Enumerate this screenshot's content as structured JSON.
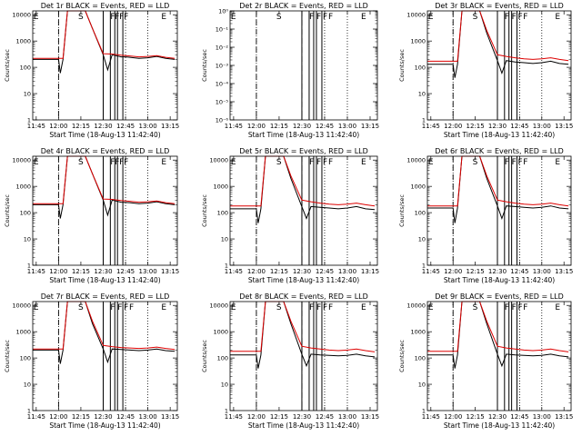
{
  "figure": {
    "colors": {
      "events": "#000000",
      "lld": "#dd0000",
      "axes": "#000000",
      "marker_line": "#000000"
    },
    "axis_font": "sans-serif"
  },
  "chart_data": [
    {
      "type": "line",
      "title": "Det 1r BLACK = Events, RED = LLD",
      "xlabel": "Start Time (18-Aug-13 11:42:40)",
      "ylabel": "Counts/sec",
      "xticks": [
        "11:45",
        "12:00",
        "12:15",
        "12:30",
        "12:45",
        "13:00",
        "13:15"
      ],
      "yticks": [
        "1",
        "10",
        "100",
        "1000",
        "10000"
      ],
      "ylim": [
        1,
        14000
      ],
      "log_y": true,
      "series": [
        {
          "name": "Events",
          "color": "black",
          "x": [
            11.71,
            11.9,
            12.0,
            12.02,
            12.05,
            12.1,
            12.3,
            12.38,
            12.5,
            12.55,
            12.6,
            12.7,
            12.75,
            12.8,
            12.9,
            13.0,
            13.1,
            13.2,
            13.3
          ],
          "y": [
            200,
            200,
            200,
            60,
            200,
            15000,
            15000,
            3000,
            300,
            80,
            300,
            250,
            250,
            240,
            220,
            230,
            260,
            220,
            200
          ]
        },
        {
          "name": "LLD",
          "color": "red",
          "x": [
            11.71,
            11.9,
            12.0,
            12.05,
            12.1,
            12.3,
            12.38,
            12.5,
            12.6,
            12.7,
            12.8,
            12.9,
            13.0,
            13.1,
            13.2,
            13.3
          ],
          "y": [
            220,
            220,
            220,
            220,
            15000,
            15000,
            3000,
            330,
            320,
            290,
            270,
            250,
            260,
            280,
            240,
            220
          ]
        }
      ],
      "markers": {
        "E": [
          11.72,
          13.15
        ],
        "S": [
          12.22
        ],
        "F": [
          12.58,
          12.63,
          12.68,
          12.73
        ]
      },
      "flares": [
        12.5,
        12.58,
        12.63,
        12.66,
        12.72
      ]
    },
    {
      "type": "line",
      "title": "Det 2r BLACK = Events, RED = LLD",
      "xlabel": "Start Time (18-Aug-13 11:42:40)",
      "ylabel": "Counts/sec",
      "xticks": [
        "11:45",
        "12:00",
        "12:15",
        "12:30",
        "12:45",
        "13:00",
        "13:15"
      ],
      "yticks": [
        "10⁻⁶",
        "10⁻⁵",
        "10⁻⁴",
        "10⁻³",
        "10⁻²",
        "10⁻¹",
        "10⁰"
      ],
      "ylim": [
        1e-06,
        1
      ],
      "log_y": true,
      "series": [],
      "markers": {
        "E": [
          11.72,
          13.15
        ],
        "S": [
          12.22
        ],
        "F": [
          12.58,
          12.66,
          12.73,
          12.79
        ]
      },
      "flares": [
        12.5,
        12.58,
        12.63,
        12.66,
        12.72
      ]
    },
    {
      "type": "line",
      "title": "Det 3r BLACK = Events, RED = LLD",
      "xlabel": "Start Time (18-Aug-13 11:42:40)",
      "ylabel": "Counts/sec",
      "xticks": [
        "11:45",
        "12:00",
        "12:15",
        "12:30",
        "12:45",
        "13:00",
        "13:15"
      ],
      "yticks": [
        "1",
        "10",
        "100",
        "1000",
        "10000"
      ],
      "ylim": [
        1,
        14000
      ],
      "log_y": true,
      "series": [
        {
          "name": "Events",
          "color": "black",
          "x": [
            11.71,
            11.9,
            12.0,
            12.02,
            12.05,
            12.1,
            12.3,
            12.38,
            12.5,
            12.55,
            12.6,
            12.7,
            12.8,
            12.9,
            13.0,
            13.1,
            13.2,
            13.3
          ],
          "y": [
            130,
            130,
            130,
            40,
            130,
            15000,
            15000,
            2000,
            180,
            60,
            180,
            160,
            150,
            140,
            150,
            170,
            140,
            130
          ]
        },
        {
          "name": "LLD",
          "color": "red",
          "x": [
            11.71,
            11.9,
            12.0,
            12.05,
            12.1,
            12.3,
            12.38,
            12.5,
            12.6,
            12.7,
            12.8,
            12.9,
            13.0,
            13.1,
            13.2,
            13.3
          ],
          "y": [
            170,
            170,
            170,
            170,
            15000,
            15000,
            2500,
            300,
            260,
            230,
            210,
            200,
            210,
            230,
            200,
            180
          ]
        }
      ],
      "markers": {
        "E": [
          11.72,
          13.15
        ],
        "S": [
          12.22
        ],
        "F": [
          12.58,
          12.66,
          12.73,
          12.79
        ]
      },
      "flares": [
        12.5,
        12.58,
        12.63,
        12.66,
        12.72
      ]
    },
    {
      "type": "line",
      "title": "Det 4r BLACK = Events, RED = LLD",
      "xlabel": "Start Time (18-Aug-13 11:42:40)",
      "ylabel": "Counts/sec",
      "xticks": [
        "11:45",
        "12:00",
        "12:15",
        "12:30",
        "12:45",
        "13:00",
        "13:15"
      ],
      "yticks": [
        "1",
        "10",
        "100",
        "1000",
        "10000"
      ],
      "ylim": [
        1,
        14000
      ],
      "log_y": true,
      "series": [
        {
          "name": "Events",
          "color": "black",
          "x": [
            11.71,
            11.9,
            12.0,
            12.02,
            12.05,
            12.1,
            12.3,
            12.38,
            12.5,
            12.55,
            12.6,
            12.7,
            12.8,
            12.9,
            13.0,
            13.1,
            13.2,
            13.3
          ],
          "y": [
            200,
            200,
            200,
            60,
            200,
            15000,
            15000,
            3000,
            300,
            80,
            300,
            250,
            240,
            220,
            230,
            260,
            220,
            200
          ]
        },
        {
          "name": "LLD",
          "color": "red",
          "x": [
            11.71,
            11.9,
            12.0,
            12.05,
            12.1,
            12.3,
            12.38,
            12.5,
            12.6,
            12.7,
            12.8,
            12.9,
            13.0,
            13.1,
            13.2,
            13.3
          ],
          "y": [
            220,
            220,
            220,
            220,
            15000,
            15000,
            3000,
            330,
            320,
            290,
            270,
            250,
            260,
            280,
            240,
            220
          ]
        }
      ],
      "markers": {
        "E": [
          11.72,
          13.15
        ],
        "S": [
          12.22
        ],
        "F": [
          12.58,
          12.63,
          12.68,
          12.73
        ]
      },
      "flares": [
        12.5,
        12.58,
        12.63,
        12.66,
        12.72
      ]
    },
    {
      "type": "line",
      "title": "Det 5r BLACK = Events, RED = LLD",
      "xlabel": "Start Time (18-Aug-13 11:42:40)",
      "ylabel": "Counts/sec",
      "xticks": [
        "11:45",
        "12:00",
        "12:15",
        "12:30",
        "12:45",
        "13:00",
        "13:15"
      ],
      "yticks": [
        "1",
        "10",
        "100",
        "1000",
        "10000"
      ],
      "ylim": [
        1,
        14000
      ],
      "log_y": true,
      "series": [
        {
          "name": "Events",
          "color": "black",
          "x": [
            11.71,
            11.9,
            12.0,
            12.02,
            12.05,
            12.1,
            12.3,
            12.38,
            12.5,
            12.55,
            12.6,
            12.7,
            12.8,
            12.9,
            13.0,
            13.1,
            13.2,
            13.3
          ],
          "y": [
            140,
            140,
            140,
            40,
            140,
            15000,
            15000,
            2000,
            170,
            60,
            170,
            160,
            150,
            140,
            150,
            170,
            140,
            130
          ]
        },
        {
          "name": "LLD",
          "color": "red",
          "x": [
            11.71,
            11.9,
            12.0,
            12.05,
            12.1,
            12.3,
            12.38,
            12.5,
            12.6,
            12.7,
            12.8,
            12.9,
            13.0,
            13.1,
            13.2,
            13.3
          ],
          "y": [
            180,
            180,
            180,
            180,
            15000,
            15000,
            2500,
            300,
            260,
            230,
            210,
            200,
            210,
            230,
            200,
            180
          ]
        }
      ],
      "markers": {
        "E": [
          11.72,
          13.15
        ],
        "S": [
          12.22
        ],
        "F": [
          12.58,
          12.66,
          12.73,
          12.79
        ]
      },
      "flares": [
        12.5,
        12.58,
        12.63,
        12.66,
        12.72
      ]
    },
    {
      "type": "line",
      "title": "Det 6r BLACK = Events, RED = LLD",
      "xlabel": "Start Time (18-Aug-13 11:42:40)",
      "ylabel": "Counts/sec",
      "xticks": [
        "11:45",
        "12:00",
        "12:15",
        "12:30",
        "12:45",
        "13:00",
        "13:15"
      ],
      "yticks": [
        "1",
        "10",
        "100",
        "1000",
        "10000"
      ],
      "ylim": [
        1,
        14000
      ],
      "log_y": true,
      "series": [
        {
          "name": "Events",
          "color": "black",
          "x": [
            11.71,
            11.9,
            12.0,
            12.02,
            12.05,
            12.1,
            12.3,
            12.38,
            12.5,
            12.55,
            12.6,
            12.7,
            12.8,
            12.9,
            13.0,
            13.1,
            13.2,
            13.3
          ],
          "y": [
            150,
            150,
            150,
            40,
            150,
            15000,
            15000,
            2000,
            180,
            60,
            180,
            170,
            160,
            150,
            160,
            180,
            150,
            140
          ]
        },
        {
          "name": "LLD",
          "color": "red",
          "x": [
            11.71,
            11.9,
            12.0,
            12.05,
            12.1,
            12.3,
            12.38,
            12.5,
            12.6,
            12.7,
            12.8,
            12.9,
            13.0,
            13.1,
            13.2,
            13.3
          ],
          "y": [
            180,
            180,
            180,
            180,
            15000,
            15000,
            2500,
            300,
            260,
            230,
            210,
            200,
            210,
            230,
            200,
            180
          ]
        }
      ],
      "markers": {
        "E": [
          11.72,
          13.15
        ],
        "S": [
          12.22
        ],
        "F": [
          12.58,
          12.66,
          12.73,
          12.79
        ]
      },
      "flares": [
        12.5,
        12.58,
        12.63,
        12.66,
        12.72
      ]
    },
    {
      "type": "line",
      "title": "Det 7r BLACK = Events, RED = LLD",
      "xlabel": "Start Time (18-Aug-13 11:42:40)",
      "ylabel": "Counts/sec",
      "xticks": [
        "11:45",
        "12:00",
        "12:15",
        "12:30",
        "12:45",
        "13:00",
        "13:15"
      ],
      "yticks": [
        "1",
        "10",
        "100",
        "1000",
        "10000"
      ],
      "ylim": [
        1,
        14000
      ],
      "log_y": true,
      "series": [
        {
          "name": "Events",
          "color": "black",
          "x": [
            11.71,
            11.9,
            12.0,
            12.02,
            12.05,
            12.1,
            12.3,
            12.38,
            12.5,
            12.55,
            12.6,
            12.7,
            12.8,
            12.9,
            13.0,
            13.1,
            13.2,
            13.3
          ],
          "y": [
            200,
            200,
            200,
            60,
            200,
            15000,
            15000,
            2000,
            220,
            70,
            220,
            210,
            200,
            190,
            200,
            220,
            190,
            180
          ]
        },
        {
          "name": "LLD",
          "color": "red",
          "x": [
            11.71,
            11.9,
            12.0,
            12.05,
            12.1,
            12.3,
            12.38,
            12.5,
            12.6,
            12.7,
            12.8,
            12.9,
            13.0,
            13.1,
            13.2,
            13.3
          ],
          "y": [
            220,
            220,
            220,
            220,
            15000,
            15000,
            2500,
            300,
            270,
            250,
            240,
            230,
            240,
            260,
            230,
            210
          ]
        }
      ],
      "markers": {
        "E": [
          11.72,
          13.15
        ],
        "S": [
          12.22
        ],
        "F": [
          12.58,
          12.66,
          12.73,
          12.79
        ]
      },
      "flares": [
        12.5,
        12.58,
        12.63,
        12.66,
        12.72
      ]
    },
    {
      "type": "line",
      "title": "Det 8r BLACK = Events, RED = LLD",
      "xlabel": "Start Time (18-Aug-13 11:42:40)",
      "ylabel": "Counts/sec",
      "xticks": [
        "11:45",
        "12:00",
        "12:15",
        "12:30",
        "12:45",
        "13:00",
        "13:15"
      ],
      "yticks": [
        "1",
        "10",
        "100",
        "1000",
        "10000"
      ],
      "ylim": [
        1,
        14000
      ],
      "log_y": true,
      "series": [
        {
          "name": "Events",
          "color": "black",
          "x": [
            11.71,
            11.9,
            12.0,
            12.02,
            12.05,
            12.1,
            12.3,
            12.38,
            12.5,
            12.55,
            12.6,
            12.7,
            12.8,
            12.9,
            13.0,
            13.1,
            13.2,
            13.3
          ],
          "y": [
            130,
            130,
            130,
            40,
            130,
            15000,
            15000,
            2000,
            140,
            50,
            140,
            130,
            125,
            120,
            125,
            140,
            120,
            110
          ]
        },
        {
          "name": "LLD",
          "color": "red",
          "x": [
            11.71,
            11.9,
            12.0,
            12.05,
            12.1,
            12.3,
            12.38,
            12.5,
            12.6,
            12.7,
            12.8,
            12.9,
            13.0,
            13.1,
            13.2,
            13.3
          ],
          "y": [
            180,
            180,
            180,
            180,
            15000,
            15000,
            2500,
            280,
            240,
            220,
            200,
            190,
            200,
            220,
            190,
            170
          ]
        }
      ],
      "markers": {
        "E": [
          11.72,
          13.15
        ],
        "S": [
          12.22
        ],
        "F": [
          12.58,
          12.66,
          12.73,
          12.79
        ]
      },
      "flares": [
        12.5,
        12.58,
        12.63,
        12.66,
        12.72
      ]
    },
    {
      "type": "line",
      "title": "Det 9r BLACK = Events, RED = LLD",
      "xlabel": "Start Time (18-Aug-13 11:42:40)",
      "ylabel": "Counts/sec",
      "xticks": [
        "11:45",
        "12:00",
        "12:15",
        "12:30",
        "12:45",
        "13:00",
        "13:15"
      ],
      "yticks": [
        "1",
        "10",
        "100",
        "1000",
        "10000"
      ],
      "ylim": [
        1,
        14000
      ],
      "log_y": true,
      "series": [
        {
          "name": "Events",
          "color": "black",
          "x": [
            11.71,
            11.9,
            12.0,
            12.02,
            12.05,
            12.1,
            12.3,
            12.38,
            12.5,
            12.55,
            12.6,
            12.7,
            12.8,
            12.9,
            13.0,
            13.1,
            13.2,
            13.3
          ],
          "y": [
            130,
            130,
            130,
            40,
            130,
            15000,
            15000,
            2000,
            140,
            50,
            140,
            130,
            125,
            120,
            125,
            140,
            120,
            110
          ]
        },
        {
          "name": "LLD",
          "color": "red",
          "x": [
            11.71,
            11.9,
            12.0,
            12.05,
            12.1,
            12.3,
            12.38,
            12.5,
            12.6,
            12.7,
            12.8,
            12.9,
            13.0,
            13.1,
            13.2,
            13.3
          ],
          "y": [
            180,
            180,
            180,
            180,
            15000,
            15000,
            2500,
            280,
            240,
            220,
            200,
            190,
            200,
            220,
            190,
            170
          ]
        }
      ],
      "markers": {
        "E": [
          11.72,
          13.15
        ],
        "S": [
          12.22
        ],
        "F": [
          12.58,
          12.66,
          12.73,
          12.79
        ]
      },
      "flares": [
        12.5,
        12.58,
        12.63,
        12.66,
        12.72
      ]
    }
  ]
}
